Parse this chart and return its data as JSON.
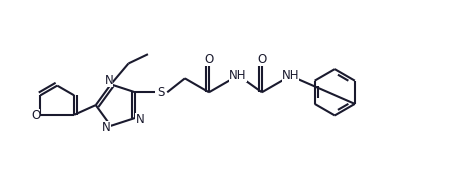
{
  "bg_color": "#ffffff",
  "line_color": "#1a1a2e",
  "line_width": 1.5,
  "font_size": 8.5,
  "fig_width": 4.56,
  "fig_height": 1.87,
  "dpi": 100,
  "xlim": [
    0,
    9.2
  ],
  "ylim": [
    -0.2,
    3.8
  ]
}
